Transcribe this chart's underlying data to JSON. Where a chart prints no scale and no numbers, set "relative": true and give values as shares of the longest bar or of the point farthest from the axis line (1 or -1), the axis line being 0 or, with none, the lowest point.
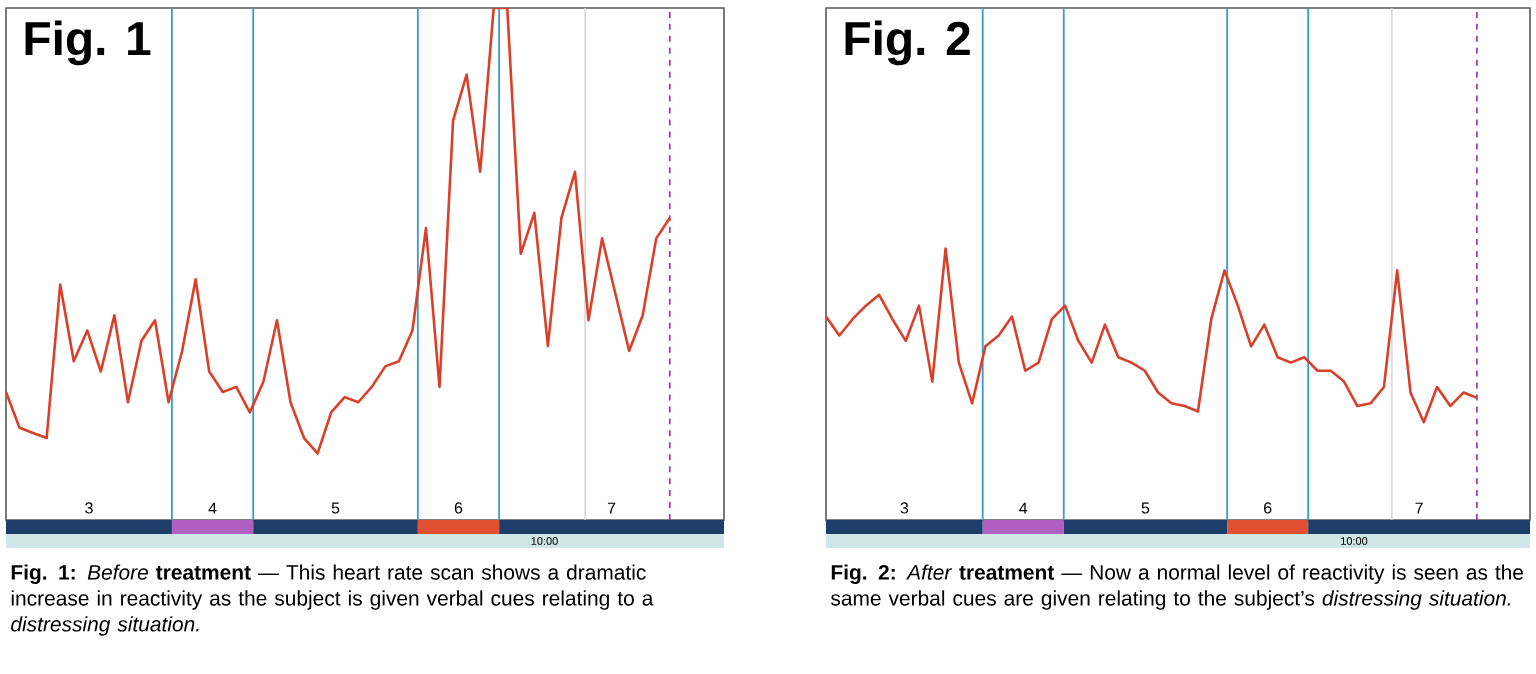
{
  "chart_data": [
    {
      "type": "line",
      "title": "Fig. 1",
      "relative": true,
      "grid": "x",
      "categories": [
        null,
        null,
        null,
        null,
        null,
        null,
        null,
        null,
        null,
        null,
        null,
        null,
        null,
        null,
        null,
        null,
        null,
        null,
        null,
        null,
        null,
        null,
        null,
        null,
        null,
        null,
        null,
        null,
        null,
        null,
        null,
        null,
        null,
        null,
        null,
        null,
        null,
        null,
        null,
        null,
        null,
        null,
        null,
        null,
        null,
        null,
        null,
        null,
        null,
        null,
        null,
        null,
        null,
        null
      ],
      "series": [
        {
          "color": "#d9402a",
          "values": [
            0.25,
            0.18,
            0.17,
            0.16,
            0.46,
            0.31,
            0.37,
            0.29,
            0.4,
            0.23,
            0.35,
            0.39,
            0.23,
            0.33,
            0.47,
            0.29,
            0.25,
            0.26,
            0.21,
            0.27,
            0.39,
            0.23,
            0.16,
            0.13,
            0.21,
            0.24,
            0.23,
            0.26,
            0.3,
            0.31,
            0.37,
            0.57,
            0.26,
            0.78,
            0.87,
            0.68,
            1.0,
            1.0,
            0.52,
            0.6,
            0.34,
            0.59,
            0.68,
            0.39,
            0.55,
            0.44,
            0.33,
            0.4,
            0.55,
            0.59,
            null,
            null,
            null,
            null
          ]
        }
      ],
      "annotations": [
        "3",
        "4",
        "5",
        "6",
        "7",
        "10:00",
        "**Fig. 1:** *Before* **treatment** — This heart rate scan shows a dramatic increase in reactivity as the subject is given verbal cues relating to a *distressing situation.*"
      ]
    },
    {
      "type": "line",
      "title": "Fig. 2",
      "relative": true,
      "grid": "x",
      "categories": [
        null,
        null,
        null,
        null,
        null,
        null,
        null,
        null,
        null,
        null,
        null,
        null,
        null,
        null,
        null,
        null,
        null,
        null,
        null,
        null,
        null,
        null,
        null,
        null,
        null,
        null,
        null,
        null,
        null,
        null,
        null,
        null,
        null,
        null,
        null,
        null,
        null,
        null,
        null,
        null,
        null,
        null,
        null,
        null,
        null,
        null,
        null,
        null,
        null,
        null,
        null,
        null,
        null,
        null
      ],
      "series": [
        {
          "color": "#d9402a",
          "values": [
            0.75,
            0.68,
            0.74,
            0.79,
            0.83,
            0.74,
            0.66,
            0.79,
            0.51,
            1.0,
            0.58,
            0.43,
            0.64,
            0.68,
            0.75,
            0.55,
            0.58,
            0.74,
            0.79,
            0.66,
            0.58,
            0.72,
            0.6,
            0.58,
            0.55,
            0.47,
            0.43,
            0.42,
            0.4,
            0.74,
            0.92,
            0.79,
            0.64,
            0.72,
            0.6,
            0.58,
            0.6,
            0.55,
            0.55,
            0.51,
            0.42,
            0.43,
            0.49,
            0.92,
            0.47,
            0.36,
            0.49,
            0.42,
            0.47,
            0.45,
            null,
            null,
            null,
            null
          ]
        }
      ],
      "annotations": [
        "3",
        "4",
        "5",
        "6",
        "7",
        "10:00",
        "**Fig. 2:** *After* **treatment** — Now a normal level of reactivity is seen as the same verbal cues are given relating to the subject’s *distressing situation.*"
      ]
    }
  ]
}
